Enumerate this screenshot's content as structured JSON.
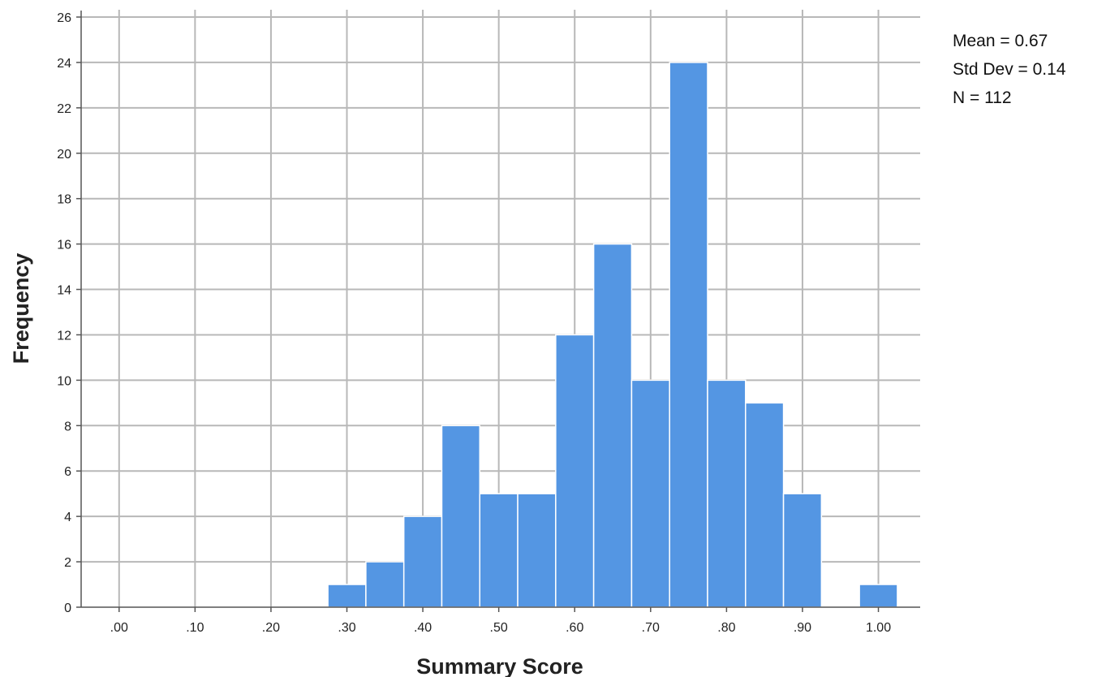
{
  "chart_data": {
    "type": "bar",
    "histogram": true,
    "xlabel": "Summary Score",
    "ylabel": "Frequency",
    "x_tick_labels": [
      ".00",
      ".10",
      ".20",
      ".30",
      ".40",
      ".50",
      ".60",
      ".70",
      ".80",
      ".90",
      "1.00"
    ],
    "x_ticks": [
      0.0,
      0.1,
      0.2,
      0.3,
      0.4,
      0.5,
      0.6,
      0.7,
      0.8,
      0.9,
      1.0
    ],
    "y_ticks": [
      0,
      2,
      4,
      6,
      8,
      10,
      12,
      14,
      16,
      18,
      20,
      22,
      24,
      26
    ],
    "xlim": [
      -0.05,
      1.055
    ],
    "ylim": [
      0,
      26
    ],
    "bin_width": 0.05,
    "bin_centers": [
      0.3,
      0.35,
      0.4,
      0.45,
      0.5,
      0.55,
      0.6,
      0.65,
      0.7,
      0.75,
      0.8,
      0.85,
      0.9,
      1.0
    ],
    "values": [
      1,
      2,
      4,
      8,
      5,
      5,
      12,
      16,
      10,
      24,
      10,
      9,
      5,
      1
    ],
    "bar_color": "#5496e3",
    "grid": true
  },
  "stats": {
    "mean": "Mean = 0.67",
    "std_dev": "Std Dev = 0.14",
    "n": "N = 112"
  }
}
